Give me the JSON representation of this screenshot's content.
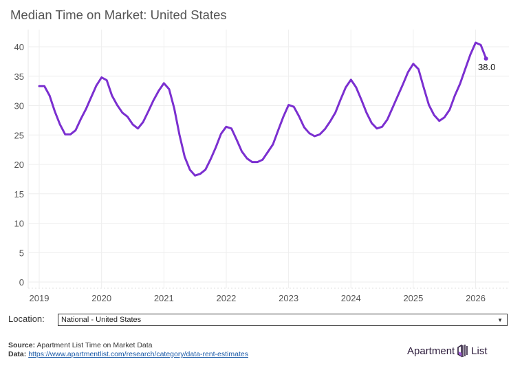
{
  "title": "Median Time on Market: United States",
  "location": {
    "label": "Location:",
    "selected": "National - United States"
  },
  "footer": {
    "source_label": "Source:",
    "source_text": "Apartment List Time on Market Data",
    "data_label": "Data:",
    "data_link": "https://www.apartmentlist.com/research/category/data-rent-estimates"
  },
  "logo": {
    "left": "Apartment",
    "right": "List"
  },
  "colors": {
    "line": "#7b2fd0",
    "grid": "#eeeeee",
    "axis_text": "#555555"
  },
  "chart_data": {
    "type": "line",
    "title": "Median Time on Market: United States",
    "xlabel": "",
    "ylabel": "",
    "ylim": [
      0,
      42
    ],
    "yticks": [
      0,
      5,
      10,
      15,
      20,
      25,
      30,
      35,
      40
    ],
    "xticks": [
      "2019",
      "2020",
      "2021",
      "2022",
      "2023",
      "2024",
      "2025",
      "2026"
    ],
    "grid": true,
    "start": "2019-01",
    "frequency": "monthly",
    "series": [
      {
        "name": "National - United States",
        "values": [
          33.3,
          33.3,
          31.7,
          29.0,
          26.8,
          25.1,
          25.1,
          25.8,
          27.7,
          29.4,
          31.4,
          33.4,
          34.8,
          34.3,
          31.7,
          30.1,
          28.8,
          28.1,
          26.8,
          26.1,
          27.2,
          29.0,
          30.9,
          32.5,
          33.8,
          32.8,
          29.5,
          25.0,
          21.3,
          19.1,
          18.1,
          18.4,
          19.1,
          20.9,
          22.9,
          25.2,
          26.4,
          26.1,
          24.2,
          22.2,
          21.0,
          20.4,
          20.4,
          20.8,
          22.1,
          23.4,
          25.8,
          28.1,
          30.1,
          29.8,
          28.2,
          26.3,
          25.3,
          24.8,
          25.1,
          26.0,
          27.3,
          28.8,
          31.0,
          33.1,
          34.4,
          33.1,
          31.0,
          28.8,
          27.0,
          26.1,
          26.4,
          27.6,
          29.6,
          31.6,
          33.6,
          35.7,
          37.1,
          36.2,
          33.1,
          30.1,
          28.4,
          27.4,
          28.0,
          29.3,
          31.7,
          33.7,
          36.2,
          38.7,
          40.7,
          40.3,
          38.0
        ]
      }
    ],
    "annotation": "38.0"
  }
}
